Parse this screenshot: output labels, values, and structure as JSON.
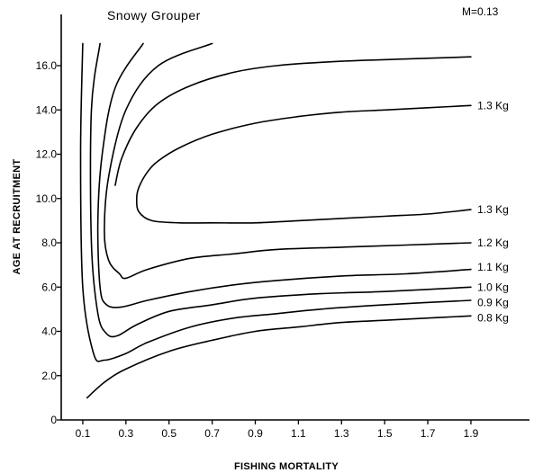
{
  "chart_data": {
    "type": "line",
    "title": "Snowy Grouper",
    "corner_text": "M=0.13",
    "xlabel": "FISHING MORTALITY",
    "ylabel": "AGE AT RECRUITMENT",
    "xlim": [
      0,
      2.0
    ],
    "ylim": [
      0,
      18
    ],
    "x_ticks": [
      0.1,
      0.3,
      0.5,
      0.7,
      0.9,
      1.1,
      1.3,
      1.5,
      1.7,
      1.9
    ],
    "x_tick_labels": [
      "0.1",
      "0.3",
      "0.5",
      "0.7",
      "0.9",
      "1.1",
      "1.3",
      "1.5",
      "1.7",
      "1.9"
    ],
    "y_ticks": [
      0,
      2,
      4,
      6,
      8,
      10,
      12,
      14,
      16
    ],
    "y_tick_labels": [
      "0",
      "2.0",
      "4.0",
      "6.0",
      "8.0",
      "10.0",
      "12.0",
      "14.0",
      "16.0"
    ],
    "grid": false,
    "legend": "none",
    "series": [
      {
        "id": "iso-0.8",
        "label": "0.8 Kg",
        "x": [
          0.12,
          0.2,
          0.3,
          0.5,
          0.7,
          0.9,
          1.1,
          1.3,
          1.5,
          1.7,
          1.9
        ],
        "y": [
          1.0,
          1.7,
          2.3,
          3.1,
          3.6,
          4.0,
          4.2,
          4.4,
          4.5,
          4.6,
          4.7
        ]
      },
      {
        "id": "iso-0.9",
        "label": "0.9 Kg",
        "x": [
          0.1,
          0.09,
          0.1,
          0.15,
          0.2,
          0.3,
          0.4,
          0.6,
          0.8,
          1.0,
          1.2,
          1.5,
          1.9
        ],
        "y": [
          17.0,
          12.0,
          6.0,
          3.0,
          2.7,
          3.0,
          3.5,
          4.2,
          4.6,
          4.8,
          5.0,
          5.2,
          5.4
        ]
      },
      {
        "id": "iso-1.0",
        "label": "1.0 Kg",
        "x": [
          0.18,
          0.14,
          0.14,
          0.17,
          0.21,
          0.26,
          0.35,
          0.5,
          0.7,
          0.9,
          1.2,
          1.5,
          1.9
        ],
        "y": [
          17.0,
          14.0,
          8.0,
          4.8,
          3.9,
          3.8,
          4.3,
          4.9,
          5.2,
          5.5,
          5.7,
          5.8,
          6.0
        ]
      },
      {
        "id": "iso-1.1",
        "label": "1.1 Kg",
        "x": [
          0.38,
          0.25,
          0.19,
          0.17,
          0.18,
          0.21,
          0.28,
          0.4,
          0.6,
          0.8,
          1.0,
          1.3,
          1.6,
          1.9
        ],
        "y": [
          17.0,
          15.0,
          12.0,
          9.0,
          6.0,
          5.2,
          5.1,
          5.4,
          5.8,
          6.1,
          6.3,
          6.5,
          6.6,
          6.8
        ]
      },
      {
        "id": "iso-1.2",
        "label": "1.2 Kg",
        "x": [
          0.7,
          0.45,
          0.3,
          0.22,
          0.2,
          0.22,
          0.27,
          0.3,
          0.4,
          0.6,
          0.8,
          1.0,
          1.3,
          1.6,
          1.9
        ],
        "y": [
          17.0,
          16.0,
          14.0,
          11.0,
          8.5,
          7.2,
          6.6,
          6.4,
          6.8,
          7.3,
          7.5,
          7.7,
          7.8,
          7.9,
          8.0
        ]
      },
      {
        "id": "iso-1.3-outer",
        "label": "1.3 Kg",
        "x": [
          1.9,
          1.6,
          1.3,
          1.0,
          0.8,
          0.6,
          0.45,
          0.35,
          0.28,
          0.25
        ],
        "y": [
          16.4,
          16.3,
          16.2,
          16.0,
          15.7,
          15.1,
          14.3,
          13.2,
          11.8,
          10.6
        ]
      },
      {
        "id": "iso-1.3-inner",
        "label": "1.3 Kg",
        "x": [
          1.9,
          1.7,
          1.5,
          1.3,
          1.1,
          0.9,
          0.7,
          0.55,
          0.45,
          0.4,
          0.36,
          0.35,
          0.36,
          0.42,
          0.55,
          0.7,
          0.9,
          1.1,
          1.3,
          1.5,
          1.7,
          1.9
        ],
        "y": [
          14.2,
          14.1,
          14.0,
          13.9,
          13.7,
          13.4,
          12.9,
          12.3,
          11.7,
          11.2,
          10.5,
          10.0,
          9.4,
          9.0,
          8.9,
          8.9,
          8.9,
          9.0,
          9.1,
          9.2,
          9.3,
          9.5
        ]
      }
    ],
    "curve_labels": [
      {
        "text": "1.3 Kg",
        "x": 1.93,
        "y": 14.2
      },
      {
        "text": "1.3 Kg",
        "x": 1.93,
        "y": 9.5
      },
      {
        "text": "1.2 Kg",
        "x": 1.93,
        "y": 8.0
      },
      {
        "text": "1.1 Kg",
        "x": 1.93,
        "y": 6.9
      },
      {
        "text": "1.0 Kg",
        "x": 1.93,
        "y": 6.0
      },
      {
        "text": "0.9 Kg",
        "x": 1.93,
        "y": 5.3
      },
      {
        "text": "0.8 Kg",
        "x": 1.93,
        "y": 4.6
      }
    ]
  }
}
